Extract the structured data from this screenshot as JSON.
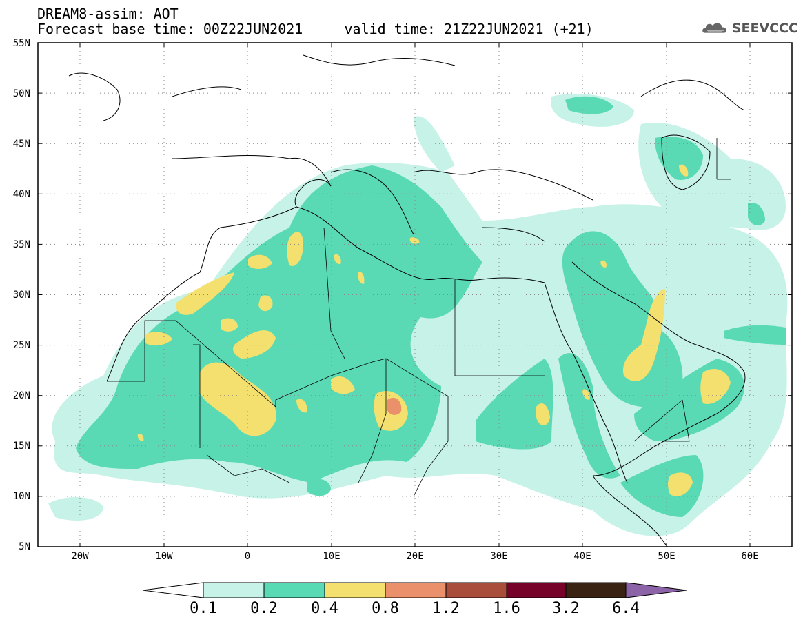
{
  "header": {
    "line1": "DREAM8-assim: AOT",
    "line2": "Forecast base time: 00Z22JUN2021     valid time: 21Z22JUN2021 (+21)"
  },
  "logo": {
    "text": "SEEVCCC",
    "icon": "cloud-icon"
  },
  "map": {
    "lat_labels": [
      "55N",
      "50N",
      "45N",
      "40N",
      "35N",
      "30N",
      "25N",
      "20N",
      "15N",
      "10N",
      "5N"
    ],
    "lon_labels": [
      "20W",
      "10W",
      "0",
      "10E",
      "20E",
      "30E",
      "40E",
      "50E",
      "60E"
    ]
  },
  "colorbar": {
    "labels": [
      "0.1",
      "0.2",
      "0.4",
      "0.8",
      "1.2",
      "1.6",
      "3.2",
      "6.4"
    ],
    "colors": [
      "#c6f2e7",
      "#5ad9b5",
      "#f3e06e",
      "#ea906b",
      "#aa4e3c",
      "#770229",
      "#3b2313",
      "#8c63a6"
    ]
  },
  "colors": {
    "land_line": "#000000",
    "grid": "#777777"
  }
}
